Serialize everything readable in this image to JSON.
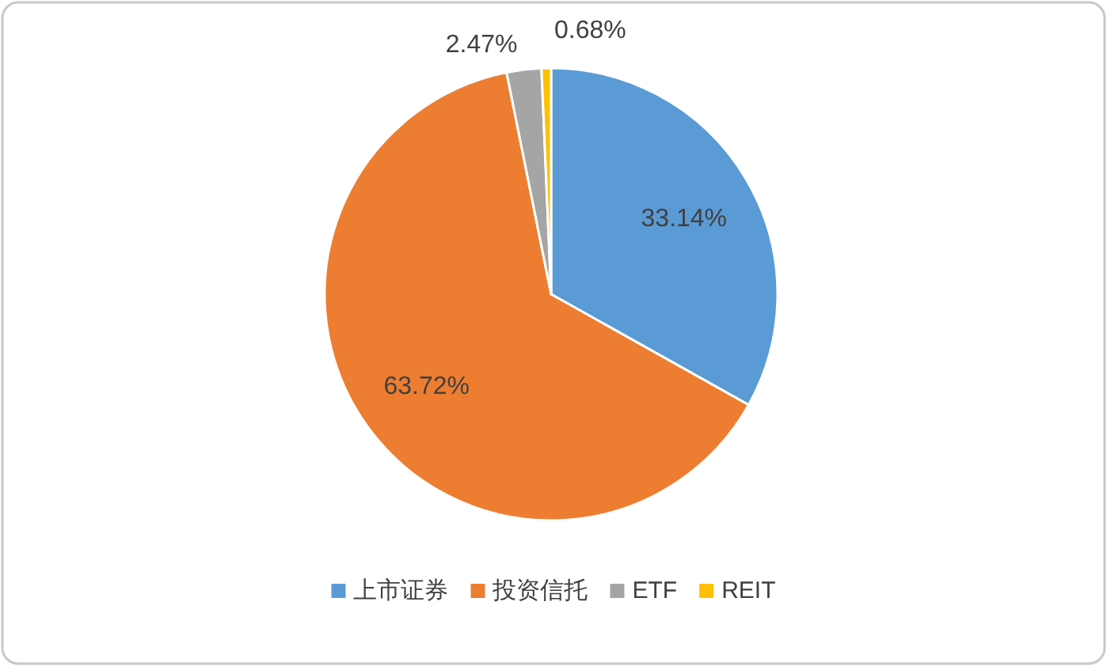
{
  "chart_data": {
    "type": "pie",
    "categories": [
      "上市证券",
      "投资信托",
      "ETF",
      "REIT"
    ],
    "values": [
      33.14,
      63.72,
      2.47,
      0.68
    ],
    "colors": [
      "#5b9bd5",
      "#ed7d31",
      "#a5a5a5",
      "#ffc000"
    ],
    "value_labels": [
      "33.14%",
      "63.72%",
      "2.47%",
      "0.68%"
    ],
    "legend": "bottom"
  }
}
